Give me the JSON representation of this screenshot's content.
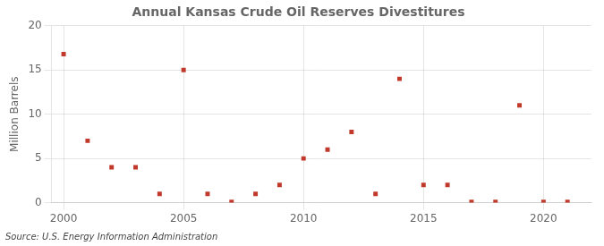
{
  "chart_data": {
    "type": "scatter",
    "title": "Annual Kansas Crude Oil Reserves Divestitures",
    "ylabel": "Million Barrels",
    "annotations": [
      "Source: U.S. Energy Information Administration"
    ],
    "x": [
      2000,
      2001,
      2002,
      2003,
      2004,
      2005,
      2006,
      2007,
      2008,
      2009,
      2010,
      2011,
      2012,
      2013,
      2014,
      2015,
      2016,
      2017,
      2018,
      2019,
      2020,
      2021
    ],
    "values": [
      16.8,
      7.0,
      4.0,
      4.0,
      1.0,
      15.0,
      1.0,
      0.1,
      1.0,
      2.0,
      5.0,
      6.0,
      8.0,
      1.0,
      14.0,
      2.0,
      2.0,
      0.1,
      0.1,
      11.0,
      0.1,
      0.1
    ],
    "color": "#c0392b",
    "marker": "square",
    "xlim": [
      1999.5,
      2022
    ],
    "xticks": [
      2000,
      2005,
      2010,
      2015,
      2020
    ],
    "ylim": [
      0,
      20
    ],
    "yticks": [
      0,
      5,
      10,
      15,
      20
    ],
    "grid": true
  }
}
